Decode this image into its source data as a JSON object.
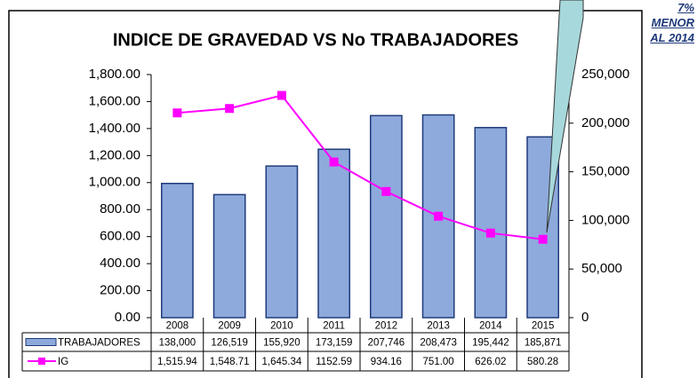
{
  "chart_data": {
    "type": "bar_line",
    "title": "INDICE DE GRAVEDAD VS No TRABAJADORES",
    "annotation": "7% MENOR AL 2014",
    "categories": [
      "2008",
      "2009",
      "2010",
      "2011",
      "2012",
      "2013",
      "2014",
      "2015"
    ],
    "series": [
      {
        "name": "TRABAJADORES",
        "type": "bar",
        "axis": "y2",
        "color": "#8eaadc",
        "values": [
          138000,
          126519,
          155920,
          173159,
          207746,
          208473,
          195442,
          185871
        ],
        "value_labels": [
          "138,000",
          "126,519",
          "155,920",
          "173,159",
          "207,746",
          "208,473",
          "195,442",
          "185,871"
        ]
      },
      {
        "name": "IG",
        "type": "line",
        "color": "#ff00ff",
        "values": [
          1515.94,
          1548.71,
          1645.34,
          1152.59,
          934.16,
          751.0,
          626.02,
          580.28
        ],
        "value_labels": [
          "1,515.94",
          "1,548.71",
          "1,645.34",
          "1152.59",
          "934.16",
          "751.00",
          "626.02",
          "580.28"
        ]
      }
    ],
    "ylim": [
      0,
      1800
    ],
    "yticks": [
      {
        "value": 0,
        "label": "0.00"
      },
      {
        "value": 200,
        "label": "200.00"
      },
      {
        "value": 400,
        "label": "400.00"
      },
      {
        "value": 600,
        "label": "600.00"
      },
      {
        "value": 800,
        "label": "800.00"
      },
      {
        "value": 1000,
        "label": "1,000.00"
      },
      {
        "value": 1200,
        "label": "1,200.00"
      },
      {
        "value": 1400,
        "label": "1,400.00"
      },
      {
        "value": 1600,
        "label": "1,600.00"
      },
      {
        "value": 1800,
        "label": "1,800.00"
      }
    ],
    "y2lim": [
      0,
      250000
    ],
    "y2ticks": [
      0,
      {
        "value": 50000,
        "label": "50,000"
      },
      {
        "value": 100000,
        "label": "100,000"
      },
      {
        "value": 150000,
        "label": "150,000"
      },
      {
        "value": 200000,
        "label": "200,000"
      },
      {
        "value": 250000,
        "label": "250,000"
      }
    ],
    "grid": false
  }
}
